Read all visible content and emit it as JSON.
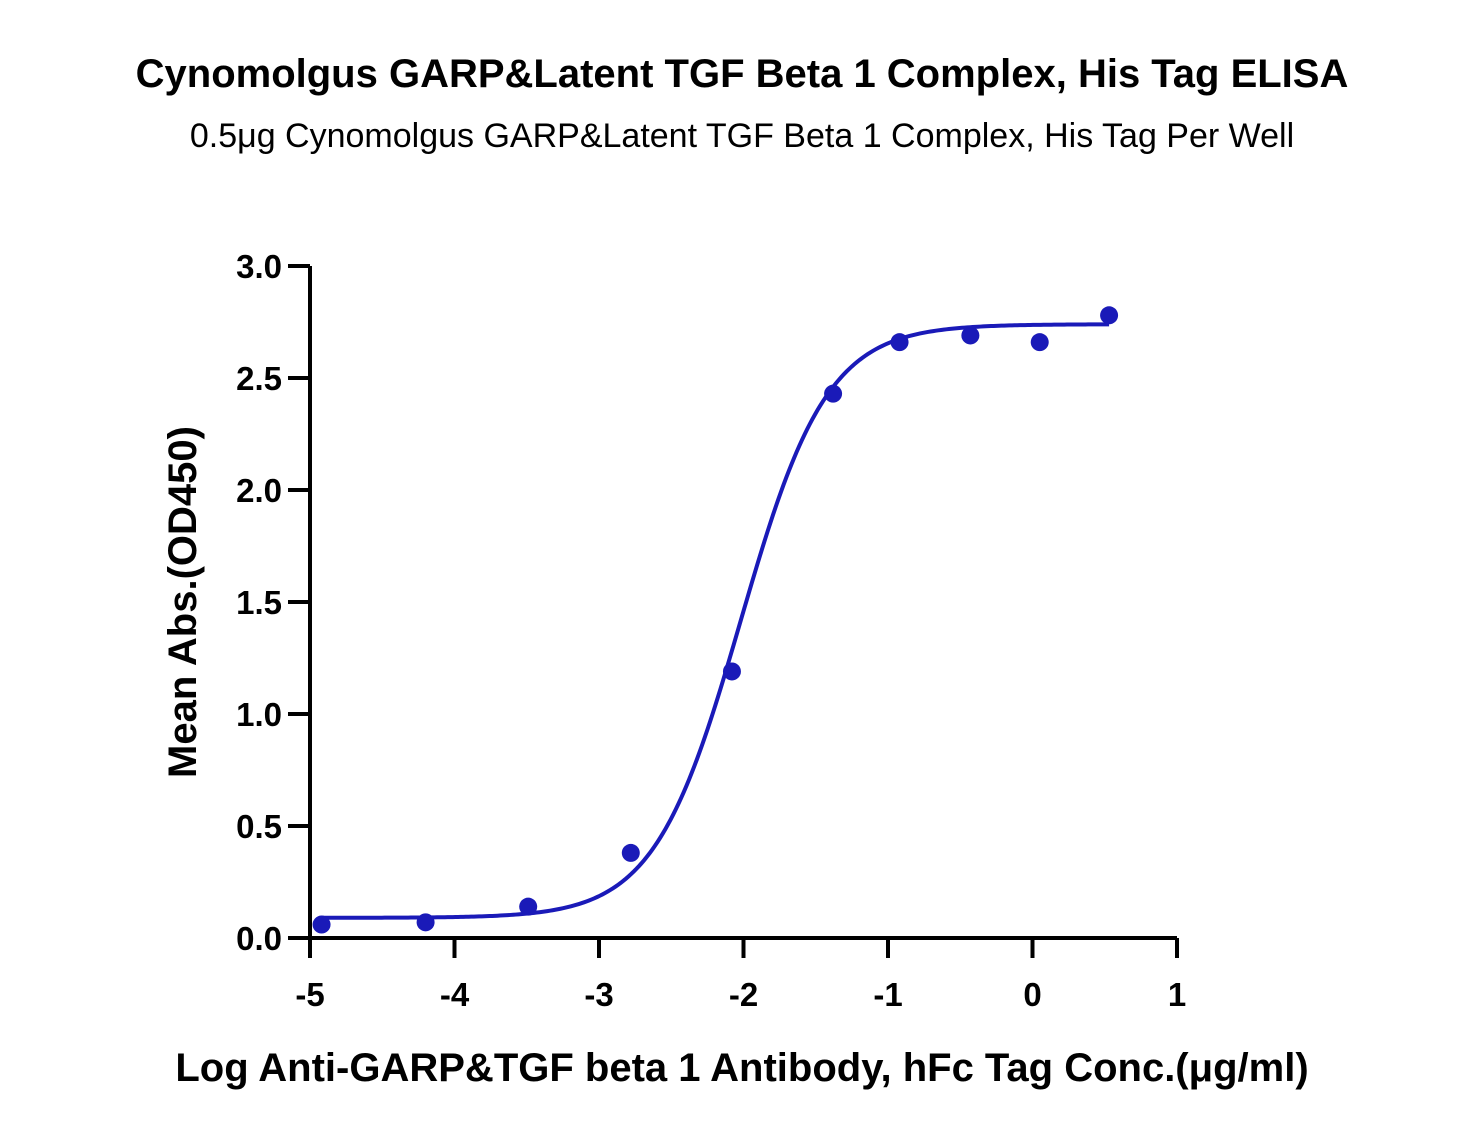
{
  "chart_data": {
    "type": "scatter",
    "title": "Cynomolgus GARP&Latent TGF Beta 1 Complex, His Tag ELISA",
    "subtitle": "0.5μg Cynomolgus GARP&Latent TGF Beta 1 Complex, His Tag Per Well",
    "xlabel": "Log Anti-GARP&TGF beta 1 Antibody, hFc Tag Conc.(μg/ml)",
    "ylabel": "Mean Abs.(OD450)",
    "xlim": [
      -5,
      1
    ],
    "ylim": [
      0,
      3.0
    ],
    "x_ticks": [
      "-5",
      "-4",
      "-3",
      "-2",
      "-1",
      "0",
      "1"
    ],
    "y_ticks": [
      "0.0",
      "0.5",
      "1.0",
      "1.5",
      "2.0",
      "2.5",
      "3.0"
    ],
    "grid": false,
    "colors": {
      "series": "#1a1ab8",
      "axis": "#000000"
    },
    "series": [
      {
        "points": [
          {
            "x": -4.92,
            "y": 0.06
          },
          {
            "x": -4.2,
            "y": 0.07
          },
          {
            "x": -3.49,
            "y": 0.14
          },
          {
            "x": -2.78,
            "y": 0.38
          },
          {
            "x": -2.08,
            "y": 1.19
          },
          {
            "x": -1.38,
            "y": 2.43
          },
          {
            "x": -0.92,
            "y": 2.66
          },
          {
            "x": -0.43,
            "y": 2.69
          },
          {
            "x": 0.05,
            "y": 2.66
          },
          {
            "x": 0.53,
            "y": 2.78
          }
        ],
        "fit": {
          "model": "4PL",
          "bottom": 0.09,
          "top": 2.74,
          "log_ec50": -2.02,
          "hill_slope": 1.45,
          "x_range": [
            -4.92,
            0.53
          ]
        }
      }
    ]
  }
}
